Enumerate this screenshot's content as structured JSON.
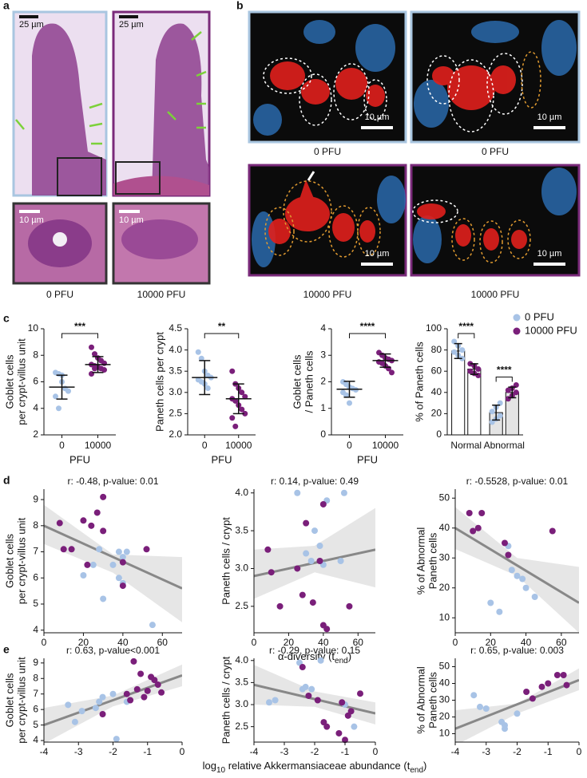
{
  "figure": {
    "panel_labels": [
      "a",
      "b",
      "c",
      "d",
      "e"
    ],
    "a": {
      "scale_bars": [
        "25 µm",
        "25 µm",
        "10 µm",
        "10 µm"
      ],
      "captions": [
        "0 PFU",
        "10000 PFU"
      ]
    },
    "b": {
      "scale_bars": [
        "10 µm",
        "10 µm",
        "10 µm",
        "10 µm"
      ],
      "captions": [
        "0 PFU",
        "0 PFU",
        "10000 PFU",
        "10000 PFU"
      ]
    }
  },
  "chart_data": [
    {
      "type": "strip",
      "ylabel": [
        "Goblet cells",
        "per crypt-villus unit"
      ],
      "xlabel": "PFU",
      "categories": [
        "0",
        "10000"
      ],
      "ylim": [
        2,
        10
      ],
      "yticks": [
        2,
        4,
        6,
        8,
        10
      ],
      "significance": "***",
      "groups": [
        {
          "color": "#a8c3e6",
          "values": [
            6.7,
            6.6,
            6.5,
            5.5,
            5.3,
            4.9,
            4.0,
            6.0
          ],
          "mean": 5.6,
          "error": 0.9
        },
        {
          "color": "#7a1f7a",
          "values": [
            8.6,
            8.1,
            7.8,
            7.6,
            7.4,
            7.3,
            7.2,
            7.1,
            7.0,
            6.9,
            6.6,
            7.0
          ],
          "mean": 7.3,
          "error": 0.6
        }
      ]
    },
    {
      "type": "strip",
      "ylabel": [
        "Paneth cells per crypt"
      ],
      "xlabel": "PFU",
      "categories": [
        "0",
        "10000"
      ],
      "ylim": [
        2,
        4.5
      ],
      "yticks": [
        {
          "value": 2,
          "label": "2.0"
        },
        2.5,
        {
          "value": 3,
          "label": "3.0"
        },
        3.5,
        {
          "value": 4,
          "label": "4.0"
        },
        4.5
      ],
      "significance": "**",
      "groups": [
        {
          "color": "#a8c3e6",
          "values": [
            3.95,
            3.8,
            3.5,
            3.4,
            3.35,
            3.3,
            3.25,
            3.2,
            3.1
          ],
          "mean": 3.35,
          "error": 0.4
        },
        {
          "color": "#7a1f7a",
          "values": [
            3.5,
            3.2,
            3.1,
            3.0,
            2.9,
            2.85,
            2.8,
            2.7,
            2.6,
            2.5,
            2.4,
            2.2
          ],
          "mean": 2.85,
          "error": 0.35
        }
      ]
    },
    {
      "type": "strip",
      "ylabel": [
        "Goblet cells",
        "/ Paneth cells"
      ],
      "xlabel": "PFU",
      "categories": [
        "0",
        "10000"
      ],
      "ylim": [
        0,
        4
      ],
      "yticks": [
        0,
        1,
        2,
        3,
        4
      ],
      "significance": "****",
      "groups": [
        {
          "color": "#a8c3e6",
          "values": [
            2.0,
            1.9,
            1.8,
            1.75,
            1.7,
            1.6,
            1.5,
            1.2
          ],
          "mean": 1.72,
          "error": 0.3
        },
        {
          "color": "#7a1f7a",
          "values": [
            3.1,
            3.0,
            2.9,
            2.85,
            2.8,
            2.75,
            2.7,
            2.6,
            2.5,
            2.35
          ],
          "mean": 2.8,
          "error": 0.25
        }
      ]
    },
    {
      "type": "bar",
      "ylabel": [
        "% of Paneth cells"
      ],
      "categories": [
        "Normal",
        "Abnormal"
      ],
      "ylim": [
        0,
        100
      ],
      "yticks": [
        0,
        20,
        40,
        60,
        80,
        100
      ],
      "bar_colors": [
        "#ffffff",
        "#e4e4e4"
      ],
      "legend": "top-right",
      "significance": [
        "****",
        "****"
      ],
      "series": [
        {
          "name": "0 PFU",
          "color": "#a8c3e6",
          "values": [
            79,
            21
          ],
          "error": [
            7,
            7
          ],
          "points": [
            [
              88,
              84,
              80,
              78,
              75,
              72
            ],
            [
              12,
              15,
              18,
              22,
              26,
              30
            ]
          ]
        },
        {
          "name": "10000 PFU",
          "color": "#7a1f7a",
          "values": [
            62,
            40
          ],
          "error": [
            5,
            5
          ],
          "points": [
            [
              67,
              65,
              62,
              60,
              58,
              56
            ],
            [
              34,
              37,
              40,
              42,
              44,
              47
            ]
          ]
        }
      ]
    },
    {
      "type": "scatter",
      "annotation": "r: -0.48, p-value: 0.01",
      "ylabel": [
        "Goblet cells",
        "per crypt-villus unit"
      ],
      "xlim": [
        0,
        70
      ],
      "xticks": [
        0,
        20,
        40,
        60
      ],
      "ylim": [
        3.9,
        9.4
      ],
      "yticks": [
        4,
        5,
        6,
        7,
        8,
        9
      ],
      "fit": {
        "x": [
          0,
          70
        ],
        "y": [
          8.0,
          5.6
        ]
      },
      "band": {
        "x": [
          0,
          35,
          70
        ],
        "lower": [
          7.3,
          6.2,
          4.3
        ],
        "upper": [
          8.8,
          6.9,
          6.8
        ]
      },
      "series": [
        {
          "color": "#a8c3e6",
          "x": [
            28,
            20,
            25,
            30,
            38,
            40,
            42,
            38,
            40,
            55,
            35
          ],
          "y": [
            7.1,
            6.1,
            6.5,
            5.2,
            7.0,
            6.8,
            7.0,
            6.0,
            5.8,
            4.2,
            6.5
          ]
        },
        {
          "color": "#7a1f7a",
          "x": [
            8,
            10,
            14,
            20,
            24,
            27,
            30,
            30,
            40,
            40,
            52,
            22
          ],
          "y": [
            8.1,
            7.1,
            7.1,
            8.2,
            8.0,
            8.5,
            9.1,
            7.8,
            5.7,
            6.6,
            7.1,
            6.5
          ]
        }
      ]
    },
    {
      "type": "scatter",
      "annotation": "r: 0.14, p-value: 0.49",
      "ylabel": [
        "Paneth cells / crypt"
      ],
      "xlabel": [
        {
          "text": "α-diversity (t"
        },
        {
          "text": "end",
          "sub": true
        },
        {
          "text": ")"
        }
      ],
      "xlim": [
        0,
        70
      ],
      "xticks": [
        0,
        20,
        40,
        60
      ],
      "ylim": [
        2.15,
        4.05
      ],
      "yticks": [
        2.5,
        {
          "value": 3,
          "label": "3.0"
        },
        3.5,
        {
          "value": 4,
          "label": "4.0"
        }
      ],
      "fit": {
        "x": [
          0,
          70
        ],
        "y": [
          2.9,
          3.25
        ]
      },
      "band": {
        "x": [
          0,
          35,
          70
        ],
        "lower": [
          2.6,
          2.95,
          2.75
        ],
        "upper": [
          3.25,
          3.3,
          3.8
        ]
      },
      "series": [
        {
          "color": "#a8c3e6",
          "x": [
            25,
            42,
            52,
            35,
            38,
            50,
            40,
            30,
            33
          ],
          "y": [
            4.0,
            3.9,
            4.0,
            3.5,
            3.3,
            3.1,
            3.05,
            3.2,
            3.1
          ]
        },
        {
          "color": "#7a1f7a",
          "x": [
            8,
            30,
            40,
            38,
            25,
            10,
            15,
            28,
            34,
            40,
            42,
            55
          ],
          "y": [
            3.25,
            3.6,
            3.85,
            3.1,
            3.0,
            2.95,
            2.5,
            2.65,
            2.55,
            2.25,
            2.2,
            2.5
          ]
        }
      ]
    },
    {
      "type": "scatter",
      "annotation": "r: -0.5528, p-value: 0.01",
      "ylabel": [
        "% of Abnormal",
        "Paneth cells"
      ],
      "xlim": [
        0,
        70
      ],
      "xticks": [
        0,
        20,
        40,
        60
      ],
      "ylim": [
        5,
        53
      ],
      "yticks": [
        10,
        20,
        30,
        40,
        50
      ],
      "fit": {
        "x": [
          0,
          70
        ],
        "y": [
          40,
          15
        ]
      },
      "band": {
        "x": [
          0,
          35,
          70
        ],
        "lower": [
          33,
          24,
          5
        ],
        "upper": [
          47,
          30,
          27
        ]
      },
      "series": [
        {
          "color": "#a8c3e6",
          "x": [
            20,
            25,
            30,
            32,
            35,
            38,
            40,
            45
          ],
          "y": [
            15,
            12,
            34,
            26,
            24,
            23,
            20,
            17
          ]
        },
        {
          "color": "#7a1f7a",
          "x": [
            8,
            10,
            15,
            13,
            28,
            30,
            55
          ],
          "y": [
            45,
            39,
            45,
            40,
            35,
            31,
            39
          ]
        }
      ]
    },
    {
      "type": "scatter",
      "annotation": "r: 0.63, p-value<0.001",
      "ylabel": [
        "Goblet cells",
        "per crypt-villus unit"
      ],
      "xlim": [
        -4,
        0
      ],
      "xticks": [
        -4,
        -3,
        -2,
        -1,
        0
      ],
      "ylim": [
        3.9,
        9.3
      ],
      "yticks": [
        4,
        5,
        6,
        7,
        8,
        9
      ],
      "fit": {
        "x": [
          -4,
          0
        ],
        "y": [
          5.0,
          8.2
        ]
      },
      "band": {
        "x": [
          -4,
          -2,
          0
        ],
        "lower": [
          3.8,
          6.2,
          7.5
        ],
        "upper": [
          6.1,
          6.9,
          8.9
        ]
      },
      "series": [
        {
          "color": "#a8c3e6",
          "x": [
            -3.3,
            -3.1,
            -2.9,
            -2.5,
            -2.4,
            -2.3,
            -2.0,
            -1.9,
            -1.6
          ],
          "y": [
            6.3,
            5.2,
            5.9,
            6.1,
            6.5,
            6.8,
            7.0,
            4.1,
            6.5
          ]
        },
        {
          "color": "#7a1f7a",
          "x": [
            -2.3,
            -1.6,
            -1.4,
            -1.2,
            -1.0,
            -0.9,
            -0.8,
            -0.7,
            -1.3,
            -1.1,
            -0.6,
            -1.5
          ],
          "y": [
            5.7,
            7.0,
            9.1,
            8.3,
            7.2,
            8.1,
            7.9,
            7.6,
            7.3,
            6.8,
            7.1,
            6.6
          ]
        }
      ]
    },
    {
      "type": "scatter",
      "annotation": "r: -0.29, p-value: 0.15",
      "ylabel": [
        "Paneth cells / crypt"
      ],
      "xlabel": [
        {
          "text": "log"
        },
        {
          "text": "10",
          "sub": true
        },
        {
          "text": " relative Akkermansiaceae abundance (t"
        },
        {
          "text": "end",
          "sub": true
        },
        {
          "text": ")"
        }
      ],
      "xlim": [
        -4,
        0
      ],
      "xticks": [
        -4,
        -3,
        -2,
        -1,
        0
      ],
      "ylim": [
        2.15,
        4.05
      ],
      "yticks": [
        2.5,
        {
          "value": 3,
          "label": "3.0"
        },
        3.5,
        {
          "value": 4,
          "label": "4.0"
        }
      ],
      "fit": {
        "x": [
          -4,
          0
        ],
        "y": [
          3.45,
          2.8
        ]
      },
      "band": {
        "x": [
          -4,
          -2,
          0
        ],
        "lower": [
          3.0,
          2.95,
          2.55
        ],
        "upper": [
          3.9,
          3.3,
          3.05
        ]
      },
      "series": [
        {
          "color": "#a8c3e6",
          "x": [
            -3.5,
            -3.3,
            -2.5,
            -2.3,
            -2.1,
            -1.8,
            -1.0,
            -0.7,
            -2.4
          ],
          "y": [
            3.05,
            3.1,
            3.95,
            3.4,
            3.35,
            4.0,
            3.0,
            2.5,
            3.35
          ]
        },
        {
          "color": "#7a1f7a",
          "x": [
            -2.4,
            -2.2,
            -1.9,
            -1.7,
            -1.6,
            -1.2,
            -1.0,
            -1.1,
            -0.8,
            -0.5,
            -0.9
          ],
          "y": [
            3.85,
            3.2,
            3.1,
            2.6,
            2.5,
            2.35,
            2.2,
            3.05,
            2.85,
            3.25,
            2.75
          ]
        }
      ]
    },
    {
      "type": "scatter",
      "annotation": "r: 0.65, p-value: 0.003",
      "ylabel": [
        "% of Abnormal",
        "Paneth cells"
      ],
      "xlim": [
        -4,
        0
      ],
      "xticks": [
        -4,
        -3,
        -2,
        -1,
        0
      ],
      "ylim": [
        5,
        55
      ],
      "yticks": [
        10,
        20,
        30,
        40,
        50
      ],
      "fit": {
        "x": [
          -4,
          0
        ],
        "y": [
          13,
          42
        ]
      },
      "band": {
        "x": [
          -4,
          -2,
          0
        ],
        "lower": [
          3,
          22,
          36
        ],
        "upper": [
          24,
          28,
          49
        ]
      },
      "series": [
        {
          "color": "#a8c3e6",
          "x": [
            -3.4,
            -3.2,
            -3.0,
            -2.5,
            -2.4,
            -2.4,
            -2.0
          ],
          "y": [
            33,
            26,
            25,
            17,
            15,
            13,
            22
          ]
        },
        {
          "color": "#7a1f7a",
          "x": [
            -1.7,
            -1.5,
            -1.2,
            -1.0,
            -0.7,
            -0.5,
            -0.4
          ],
          "y": [
            35,
            31,
            38,
            40,
            45,
            45,
            39
          ]
        }
      ]
    }
  ]
}
